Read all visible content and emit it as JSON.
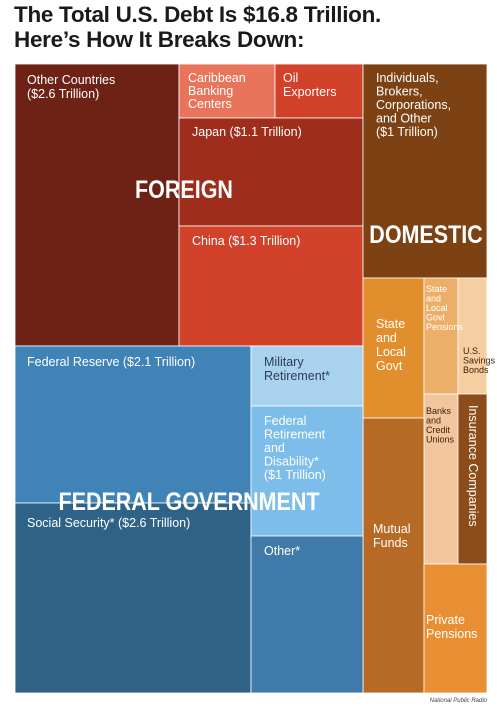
{
  "title_line1": "The Total U.S. Debt Is $16.8 Trillion.",
  "title_line2": "Here’s How It Breaks Down:",
  "credit": "National Public Radio",
  "colors": {
    "foreign_dark": "#6e2115",
    "foreign_mid": "#9e2d1b",
    "foreign_bright": "#d2412a",
    "caribbean": "#e8745c",
    "federal_light": "#3f83b7",
    "federal_dark": "#2e6387",
    "military": "#a9d2ee",
    "federal_ret": "#7cbde9",
    "other_fed": "#3f7aa8",
    "domestic_dark": "#7c4214",
    "state_local": "#e18e2c",
    "state_pension": "#ecaf6a",
    "savings": "#f5cfa2",
    "banks": "#f2c59c",
    "insurance": "#8d4d1a",
    "mutual": "#b76a25",
    "private": "#e88f34"
  },
  "chart_data": {
    "type": "treemap",
    "total_trillion": 16.8,
    "groups": [
      {
        "name": "FOREIGN",
        "segments": [
          {
            "label": "Other Countries ($2.6 Trillion)"
          },
          {
            "label": "Caribbean Banking Centers"
          },
          {
            "label": "Oil Exporters"
          },
          {
            "label": "Japan ($1.1 Trillion)"
          },
          {
            "label": "China ($1.3 Trillion)"
          }
        ]
      },
      {
        "name": "DOMESTIC",
        "segments": [
          {
            "label": "Individuals, Brokers, Corporations, and Other ($1 Trillion)"
          },
          {
            "label": "State and Local Govt"
          },
          {
            "label": "State and Local Govt Pensions"
          },
          {
            "label": "U.S. Savings Bonds"
          },
          {
            "label": "Banks and Credit Unions"
          },
          {
            "label": "Insurance Companies"
          },
          {
            "label": "Mutual Funds"
          },
          {
            "label": "Private Pensions"
          }
        ]
      },
      {
        "name": "FEDERAL GOVERNMENT",
        "segments": [
          {
            "label": "Federal Reserve ($2.1 Trillion)"
          },
          {
            "label": "Social Security* ($2.6 Trillion)"
          },
          {
            "label": "Military Retirement*"
          },
          {
            "label": "Federal Retirement and Disability* ($1 Trillion)"
          },
          {
            "label": "Other*"
          }
        ]
      }
    ]
  }
}
